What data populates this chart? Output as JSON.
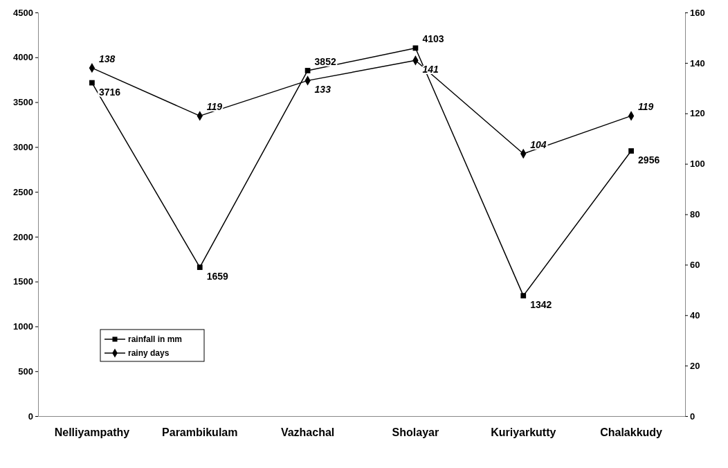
{
  "chart_data": {
    "type": "line",
    "categories": [
      "Nelliyampathy",
      "Parambikulam",
      "Vazhachal",
      "Sholayar",
      "Kuriyarkutty",
      "Chalakkudy"
    ],
    "series": [
      {
        "name": "rainfall in mm",
        "color": "#000000",
        "marker": "square",
        "values": [
          3716,
          1659,
          3852,
          4103,
          1342,
          2956
        ]
      },
      {
        "name": "rainy days",
        "color": "#000000",
        "marker": "diamond",
        "axis": "y2",
        "values": [
          138,
          119,
          133,
          141,
          104,
          119
        ]
      }
    ],
    "ylim": [
      0,
      4500
    ],
    "yticks": [
      0,
      500,
      1000,
      1500,
      2000,
      2500,
      3000,
      3500,
      4000,
      4500
    ],
    "y2lim": [
      0,
      160
    ],
    "y2ticks": [
      0,
      20,
      40,
      60,
      80,
      100,
      120,
      140,
      160
    ],
    "data_labels": true,
    "legend": "bottom left",
    "grid": false
  }
}
